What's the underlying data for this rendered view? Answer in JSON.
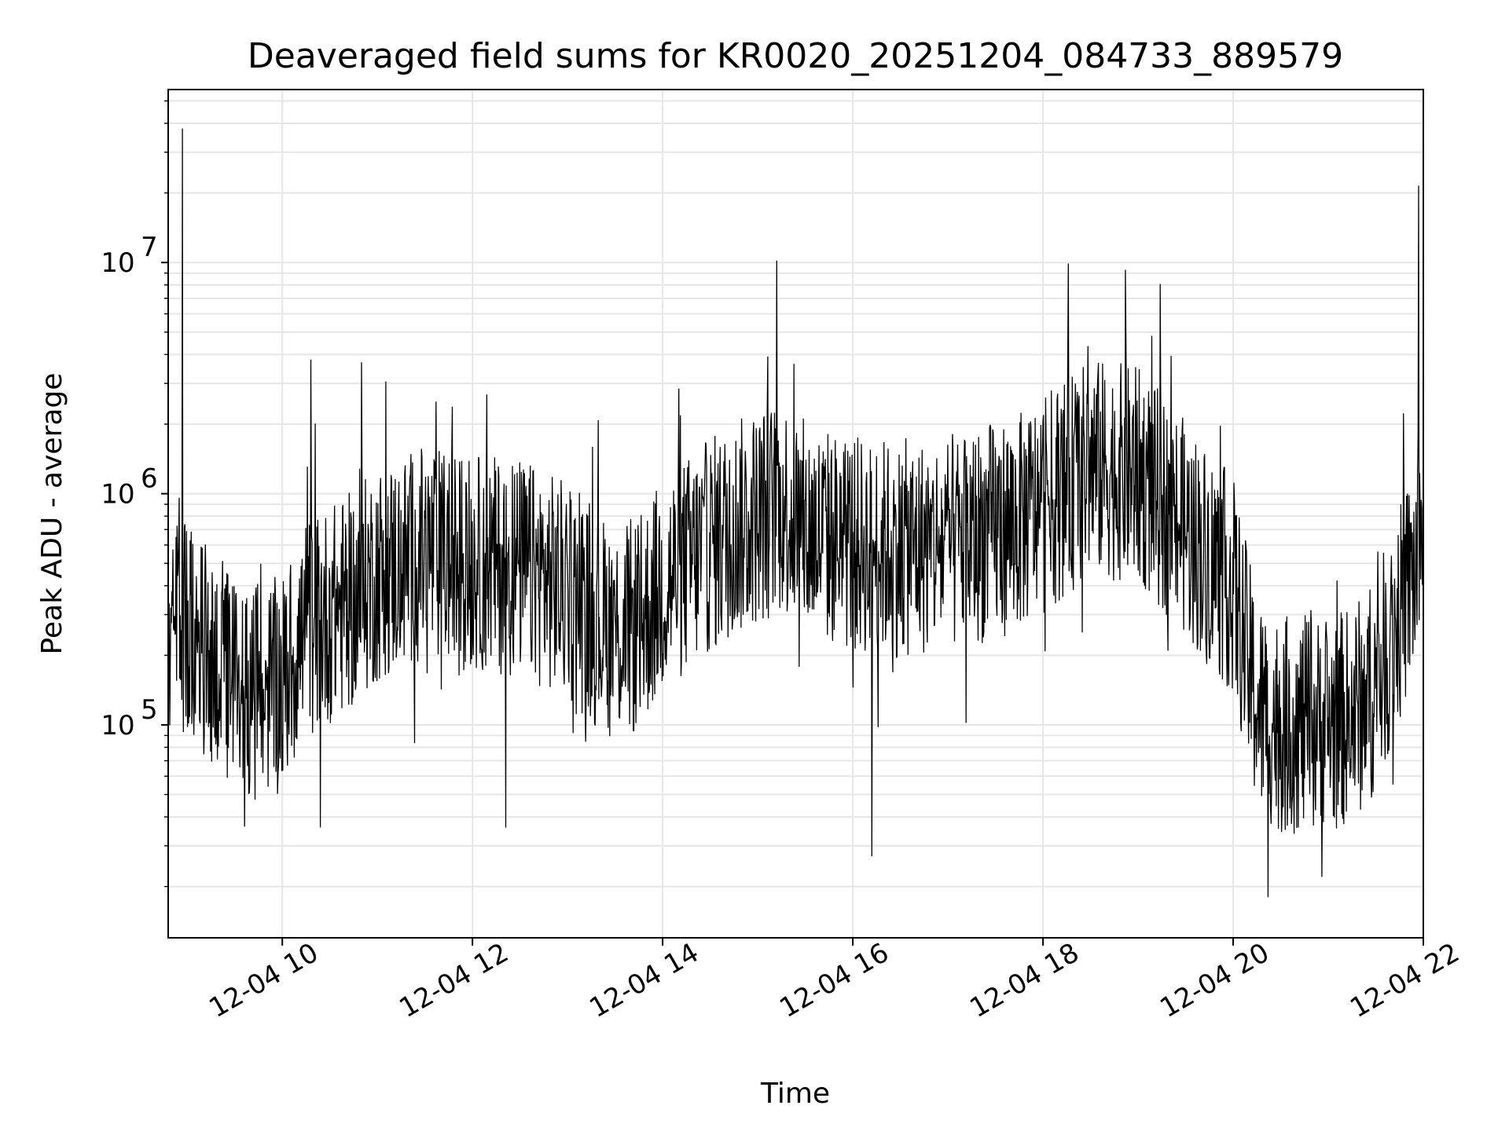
{
  "chart_data": {
    "type": "line",
    "title": "Deaveraged field sums for KR0020_20251204_084733_889579",
    "xlabel": "Time",
    "ylabel": "Peak ADU - average",
    "yscale": "log",
    "xlim": [
      "2025-12-04T08:48",
      "2025-12-04T22:00"
    ],
    "ylim": [
      12000,
      56000000
    ],
    "grid": true,
    "line_color": "#000000",
    "xticks": [
      {
        "t": "2025-12-04T10:00",
        "label": "12-04 10"
      },
      {
        "t": "2025-12-04T12:00",
        "label": "12-04 12"
      },
      {
        "t": "2025-12-04T14:00",
        "label": "12-04 14"
      },
      {
        "t": "2025-12-04T16:00",
        "label": "12-04 16"
      },
      {
        "t": "2025-12-04T18:00",
        "label": "12-04 18"
      },
      {
        "t": "2025-12-04T20:00",
        "label": "12-04 20"
      },
      {
        "t": "2025-12-04T22:00",
        "label": "12-04 22"
      }
    ],
    "yticks": [
      {
        "value": 100000,
        "base": "10",
        "exp": "5"
      },
      {
        "value": 1000000,
        "base": "10",
        "exp": "6"
      },
      {
        "value": 10000000,
        "base": "10",
        "exp": "7"
      }
    ],
    "series_trend": {
      "x": [
        "2025-12-04T08:48",
        "2025-12-04T09:00",
        "2025-12-04T09:15",
        "2025-12-04T09:30",
        "2025-12-04T09:45",
        "2025-12-04T10:00",
        "2025-12-04T10:15",
        "2025-12-04T10:30",
        "2025-12-04T10:45",
        "2025-12-04T11:00",
        "2025-12-04T11:30",
        "2025-12-04T12:00",
        "2025-12-04T12:30",
        "2025-12-04T13:00",
        "2025-12-04T13:15",
        "2025-12-04T13:30",
        "2025-12-04T13:45",
        "2025-12-04T14:00",
        "2025-12-04T14:30",
        "2025-12-04T15:00",
        "2025-12-04T15:15",
        "2025-12-04T15:30",
        "2025-12-04T16:00",
        "2025-12-04T16:30",
        "2025-12-04T17:00",
        "2025-12-04T17:30",
        "2025-12-04T17:45",
        "2025-12-04T18:00",
        "2025-12-04T18:30",
        "2025-12-04T19:00",
        "2025-12-04T19:30",
        "2025-12-04T20:00",
        "2025-12-04T20:15",
        "2025-12-04T20:30",
        "2025-12-04T21:00",
        "2025-12-04T21:15",
        "2025-12-04T21:30",
        "2025-12-04T21:45",
        "2025-12-04T22:00"
      ],
      "y": [
        300000,
        250000,
        200000,
        150000,
        140000,
        150000,
        260000,
        300000,
        350000,
        450000,
        550000,
        500000,
        480000,
        380000,
        300000,
        250000,
        270000,
        400000,
        600000,
        800000,
        900000,
        700000,
        600000,
        580000,
        600000,
        700000,
        750000,
        900000,
        1300000,
        1200000,
        700000,
        400000,
        120000,
        100000,
        100000,
        110000,
        150000,
        300000,
        600000
      ]
    },
    "spikes": [
      {
        "x": "2025-12-04T08:57",
        "y": 38000000
      },
      {
        "x": "2025-12-04T10:18",
        "y": 3800000
      },
      {
        "x": "2025-12-04T10:50",
        "y": 3700000
      },
      {
        "x": "2025-12-04T15:12",
        "y": 10200000
      },
      {
        "x": "2025-12-04T18:16",
        "y": 9900000
      },
      {
        "x": "2025-12-04T18:52",
        "y": 9300000
      },
      {
        "x": "2025-12-04T21:57",
        "y": 21500000
      }
    ],
    "dips": [
      {
        "x": "2025-12-04T10:24",
        "y": 36000
      },
      {
        "x": "2025-12-04T12:21",
        "y": 36000
      },
      {
        "x": "2025-12-04T16:12",
        "y": 27000
      },
      {
        "x": "2025-12-04T20:22",
        "y": 18000
      },
      {
        "x": "2025-12-04T20:56",
        "y": 22000
      }
    ]
  }
}
